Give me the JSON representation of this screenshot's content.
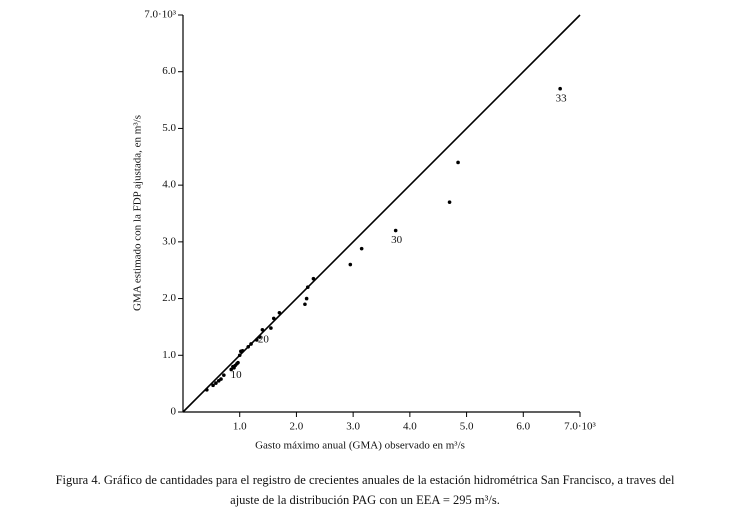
{
  "chart_data": {
    "type": "scatter",
    "x_label": "Gasto máximo anual (GMA) observado en m³/s",
    "y_label": "GMA estimado con la FDP ajustada, en m³/s",
    "xlim": [
      0,
      7
    ],
    "ylim": [
      0,
      7
    ],
    "xticks": [
      {
        "value": 1,
        "label": "1.0"
      },
      {
        "value": 2,
        "label": "2.0"
      },
      {
        "value": 3,
        "label": "3.0"
      },
      {
        "value": 4,
        "label": "4.0"
      },
      {
        "value": 5,
        "label": "5.0"
      },
      {
        "value": 6,
        "label": "6.0"
      },
      {
        "value": 7,
        "label": "7.0·10³"
      }
    ],
    "yticks": [
      0,
      {
        "value": 1,
        "label": "1.0"
      },
      {
        "value": 2,
        "label": "2.0"
      },
      {
        "value": 3,
        "label": "3.0"
      },
      {
        "value": 4,
        "label": "4.0"
      },
      {
        "value": 5,
        "label": "5.0"
      },
      {
        "value": 6,
        "label": "6.0"
      },
      {
        "value": 7,
        "label": "7.0·10³"
      }
    ],
    "x": [
      0.42,
      0.53,
      0.58,
      0.63,
      0.67,
      0.72,
      0.85,
      0.88,
      0.9,
      0.92,
      0.95,
      0.97,
      1.0,
      1.02,
      1.05,
      1.15,
      1.2,
      1.3,
      1.35,
      1.4,
      1.55,
      1.6,
      1.7,
      2.15,
      2.18,
      2.2,
      2.3,
      2.95,
      3.15,
      3.75,
      4.7,
      4.85,
      6.65
    ],
    "y": [
      0.39,
      0.47,
      0.51,
      0.55,
      0.58,
      0.65,
      0.75,
      0.8,
      0.78,
      0.82,
      0.85,
      0.87,
      1.0,
      1.07,
      1.08,
      1.15,
      1.2,
      1.27,
      1.32,
      1.45,
      1.48,
      1.65,
      1.75,
      1.9,
      2.0,
      2.2,
      2.35,
      2.6,
      2.88,
      3.2,
      3.7,
      4.4,
      5.7
    ],
    "point_labels": [
      null,
      null,
      null,
      null,
      null,
      null,
      null,
      null,
      null,
      "10",
      null,
      null,
      null,
      null,
      null,
      null,
      null,
      null,
      null,
      "20",
      null,
      null,
      null,
      null,
      null,
      null,
      null,
      null,
      null,
      "30",
      null,
      null,
      "33"
    ],
    "color": "#000000",
    "reference_line": {
      "x": [
        0,
        7
      ],
      "y": [
        0,
        7
      ]
    }
  },
  "caption": [
    "Figura 4. Gráfico de cantidades para el registro de crecientes anuales de la estación hidrométrica San Francisco, a traves del",
    "ajuste de la distribución PAG con un EEA = 295 m³/s."
  ]
}
